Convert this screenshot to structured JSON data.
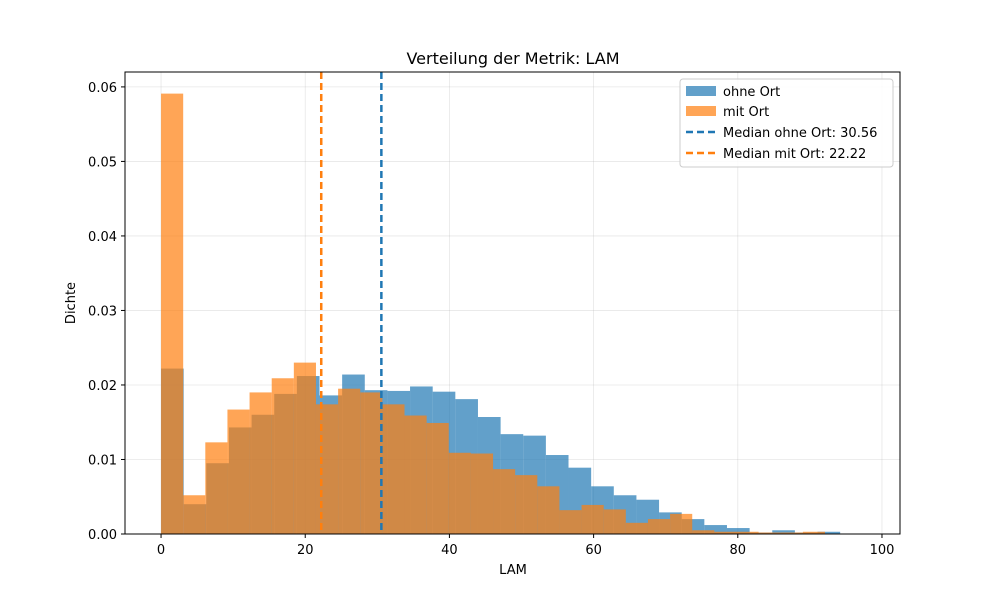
{
  "chart_data": {
    "type": "histogram",
    "title": "Verteilung der Metrik: LAM",
    "xlabel": "LAM",
    "ylabel": "Dichte",
    "xlim": [
      -5,
      102.5
    ],
    "ylim": [
      0,
      0.062
    ],
    "xticks": [
      0,
      20,
      40,
      60,
      80,
      100
    ],
    "yticks": [
      0.0,
      0.01,
      0.02,
      0.03,
      0.04,
      0.05,
      0.06
    ],
    "ytick_labels": [
      "0.00",
      "0.01",
      "0.02",
      "0.03",
      "0.04",
      "0.05",
      "0.06"
    ],
    "grid": true,
    "legend_position": "top-right",
    "series": [
      {
        "name": "ohne Ort",
        "color": "#1f77b4",
        "opacity": 0.7,
        "bin_edges": [
          0,
          3.14,
          6.28,
          9.42,
          12.56,
          15.7,
          18.84,
          21.98,
          25.12,
          28.26,
          31.4,
          34.54,
          37.68,
          40.82,
          43.96,
          47.1,
          50.24,
          53.38,
          56.52,
          59.66,
          62.8,
          65.94,
          69.08,
          72.22,
          75.36,
          78.5,
          81.64,
          84.78,
          87.92,
          91.06,
          94.2
        ],
        "density": [
          0.0222,
          0.004,
          0.0095,
          0.0143,
          0.016,
          0.0188,
          0.0212,
          0.0186,
          0.0214,
          0.0193,
          0.0192,
          0.0198,
          0.0191,
          0.0181,
          0.0157,
          0.0134,
          0.0132,
          0.0106,
          0.0089,
          0.0064,
          0.0052,
          0.0046,
          0.0029,
          0.002,
          0.0012,
          0.0008,
          0.0002,
          0.0005,
          0.0002,
          0.0003
        ]
      },
      {
        "name": "mit Ort",
        "color": "#ff7f0e",
        "opacity": 0.7,
        "bin_edges": [
          0,
          3.07,
          6.14,
          9.21,
          12.28,
          15.35,
          18.42,
          21.49,
          24.56,
          27.63,
          30.7,
          33.77,
          36.84,
          39.91,
          42.98,
          46.05,
          49.12,
          52.19,
          55.26,
          58.33,
          61.4,
          64.47,
          67.54,
          70.61,
          73.68,
          76.75,
          79.82,
          82.89,
          85.96,
          89.03,
          92.1
        ],
        "density": [
          0.0591,
          0.0052,
          0.0123,
          0.0167,
          0.019,
          0.0209,
          0.023,
          0.0174,
          0.0195,
          0.019,
          0.0174,
          0.0159,
          0.0149,
          0.0109,
          0.0108,
          0.0087,
          0.0079,
          0.0064,
          0.0032,
          0.0039,
          0.0033,
          0.0015,
          0.002,
          0.0027,
          0.0005,
          0.0003,
          0.0003,
          0.0002,
          0.0002,
          0.0003
        ]
      }
    ],
    "medians": [
      {
        "label": "Median ohne Ort: 30.56",
        "value": 30.56,
        "color": "#1f77b4"
      },
      {
        "label": "Median mit Ort: 22.22",
        "value": 22.22,
        "color": "#ff7f0e"
      }
    ]
  }
}
